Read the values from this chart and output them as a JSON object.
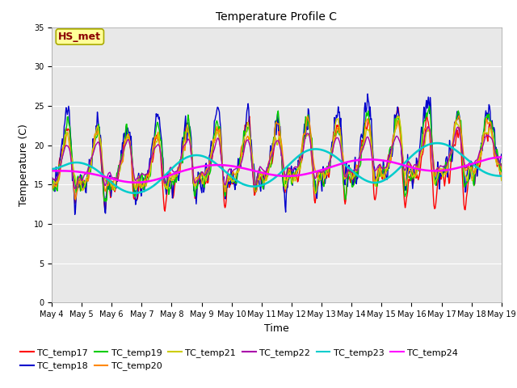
{
  "title": "Temperature Profile C",
  "xlabel": "Time",
  "ylabel": "Temperature (C)",
  "ylim": [
    0,
    35
  ],
  "yticks": [
    0,
    5,
    10,
    15,
    20,
    25,
    30,
    35
  ],
  "annotation_text": "HS_met",
  "annotation_color": "#8B0000",
  "annotation_bg": "#FFFF99",
  "annotation_edge": "#AAAA00",
  "series_names": [
    "TC_temp17",
    "TC_temp18",
    "TC_temp19",
    "TC_temp20",
    "TC_temp21",
    "TC_temp22",
    "TC_temp23",
    "TC_temp24"
  ],
  "series_colors": [
    "#FF0000",
    "#0000CC",
    "#00CC00",
    "#FF8800",
    "#CCCC00",
    "#AA00AA",
    "#00CCCC",
    "#FF00FF"
  ],
  "series_lw": [
    1.0,
    1.0,
    1.0,
    1.0,
    1.0,
    1.0,
    1.8,
    1.8
  ],
  "x_start": 0,
  "x_end": 15,
  "n_points": 720,
  "xtick_labels": [
    "May 4",
    "May 5",
    "May 6",
    "May 7",
    "May 8",
    "May 9",
    "May 10",
    "May 11",
    "May 12",
    "May 13",
    "May 14",
    "May 15",
    "May 16",
    "May 17",
    "May 18",
    "May 19"
  ],
  "xtick_positions": [
    0,
    1,
    2,
    3,
    4,
    5,
    6,
    7,
    8,
    9,
    10,
    11,
    12,
    13,
    14,
    15
  ],
  "figsize": [
    6.4,
    4.8
  ],
  "dpi": 100,
  "bg_color": "#E8E8E8",
  "title_fontsize": 10,
  "tick_fontsize": 7,
  "ylabel_fontsize": 9,
  "xlabel_fontsize": 9,
  "legend_fontsize": 8,
  "legend_ncol": 6
}
